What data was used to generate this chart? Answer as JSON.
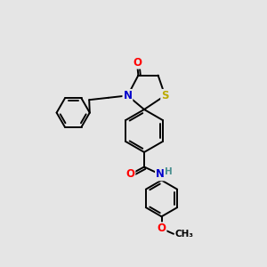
{
  "bg_color": "#e5e5e5",
  "bond_color": "#000000",
  "atom_colors": {
    "O": "#ff0000",
    "N": "#0000cc",
    "S": "#bbaa00",
    "H": "#4a9090",
    "C": "#000000"
  },
  "font_size": 8.5,
  "line_width": 1.4,
  "figsize": [
    3.0,
    3.0
  ],
  "dpi": 100
}
